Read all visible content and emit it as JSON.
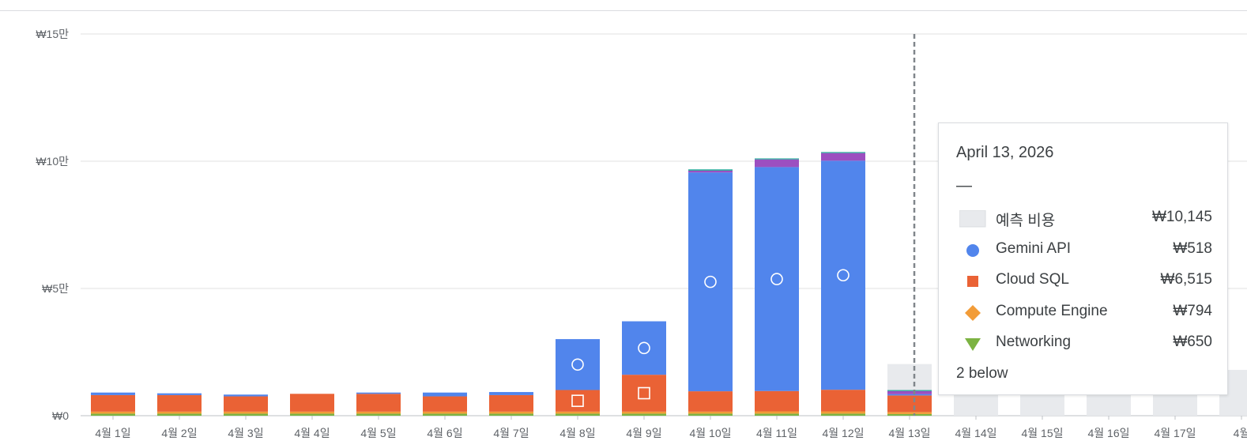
{
  "chart_data": {
    "type": "bar",
    "stacked": true,
    "categories": [
      "4월 1일",
      "4월 2일",
      "4월 3일",
      "4월 4일",
      "4월 5일",
      "4월 6일",
      "4월 7일",
      "4월 8일",
      "4월 9일",
      "4월 10일",
      "4월 11일",
      "4월 12일",
      "4월 13일",
      "4월 14일",
      "4월 15일",
      "4월 16일",
      "4월 17일",
      "4월"
    ],
    "y_ticks": [
      {
        "value": 0,
        "label": "₩0"
      },
      {
        "value": 50000,
        "label": "₩5만"
      },
      {
        "value": 100000,
        "label": "₩10만"
      },
      {
        "value": 150000,
        "label": "₩15만"
      }
    ],
    "ylim": [
      0,
      150000
    ],
    "grid": true,
    "series": [
      {
        "name": "Networking",
        "color": "#7cb342",
        "values": [
          800,
          800,
          800,
          800,
          800,
          800,
          800,
          800,
          800,
          800,
          800,
          800,
          650,
          null,
          null,
          null,
          null,
          null
        ]
      },
      {
        "name": "Compute Engine",
        "color": "#f29c38",
        "values": [
          800,
          800,
          800,
          800,
          800,
          800,
          800,
          800,
          800,
          800,
          900,
          900,
          794,
          null,
          null,
          null,
          null,
          null
        ]
      },
      {
        "name": "Cloud SQL",
        "color": "#ea6235",
        "values": [
          6500,
          6500,
          6000,
          7000,
          7000,
          6000,
          6500,
          8500,
          14500,
          8000,
          8000,
          8500,
          6515,
          null,
          null,
          null,
          null,
          null
        ]
      },
      {
        "name": "Gemini API",
        "color": "#5185ec",
        "values": [
          1000,
          700,
          700,
          0,
          500,
          1500,
          1200,
          20000,
          21000,
          86000,
          88000,
          90000,
          518,
          null,
          null,
          null,
          null,
          null
        ]
      },
      {
        "color": "#9c4fc0",
        "values": [
          0,
          0,
          0,
          0,
          0,
          0,
          0,
          0,
          0,
          700,
          3000,
          3000,
          1200,
          null,
          null,
          null,
          null,
          null
        ]
      },
      {
        "color": "#26a69a",
        "values": [
          0,
          0,
          0,
          0,
          0,
          0,
          0,
          0,
          0,
          500,
          400,
          400,
          400,
          null,
          null,
          null,
          null,
          null
        ]
      }
    ],
    "forecast": {
      "name": "예측 비용",
      "color": "#e8eaed",
      "values": [
        null,
        null,
        null,
        null,
        null,
        null,
        null,
        null,
        null,
        null,
        null,
        null,
        20300,
        18000,
        18000,
        18000,
        18000,
        18000
      ]
    },
    "markers": [
      {
        "category": "4월 8일",
        "series": "Gemini API",
        "shape": "circle"
      },
      {
        "category": "4월 8일",
        "series": "Cloud SQL",
        "shape": "square"
      },
      {
        "category": "4월 9일",
        "series": "Gemini API",
        "shape": "circle"
      },
      {
        "category": "4월 9일",
        "series": "Cloud SQL",
        "shape": "square"
      },
      {
        "category": "4월 10일",
        "series": "Gemini API",
        "shape": "circle"
      },
      {
        "category": "4월 11일",
        "series": "Gemini API",
        "shape": "circle"
      },
      {
        "category": "4월 12일",
        "series": "Gemini API",
        "shape": "circle"
      }
    ],
    "hover_category": "4월 13일"
  },
  "tooltip": {
    "date": "April 13, 2026",
    "separator": "—",
    "rows": [
      {
        "label": "예측 비용",
        "value": "₩10,145",
        "key": "square-light",
        "color": "#e8eaed"
      },
      {
        "label": "Gemini API",
        "value": "₩518",
        "key": "circle",
        "color": "#5185ec"
      },
      {
        "label": "Cloud SQL",
        "value": "₩6,515",
        "key": "square",
        "color": "#ea6235"
      },
      {
        "label": "Compute Engine",
        "value": "₩794",
        "key": "diamond",
        "color": "#f29c38"
      },
      {
        "label": "Networking",
        "value": "₩650",
        "key": "triangle",
        "color": "#7cb342"
      }
    ],
    "more": "2 below"
  }
}
